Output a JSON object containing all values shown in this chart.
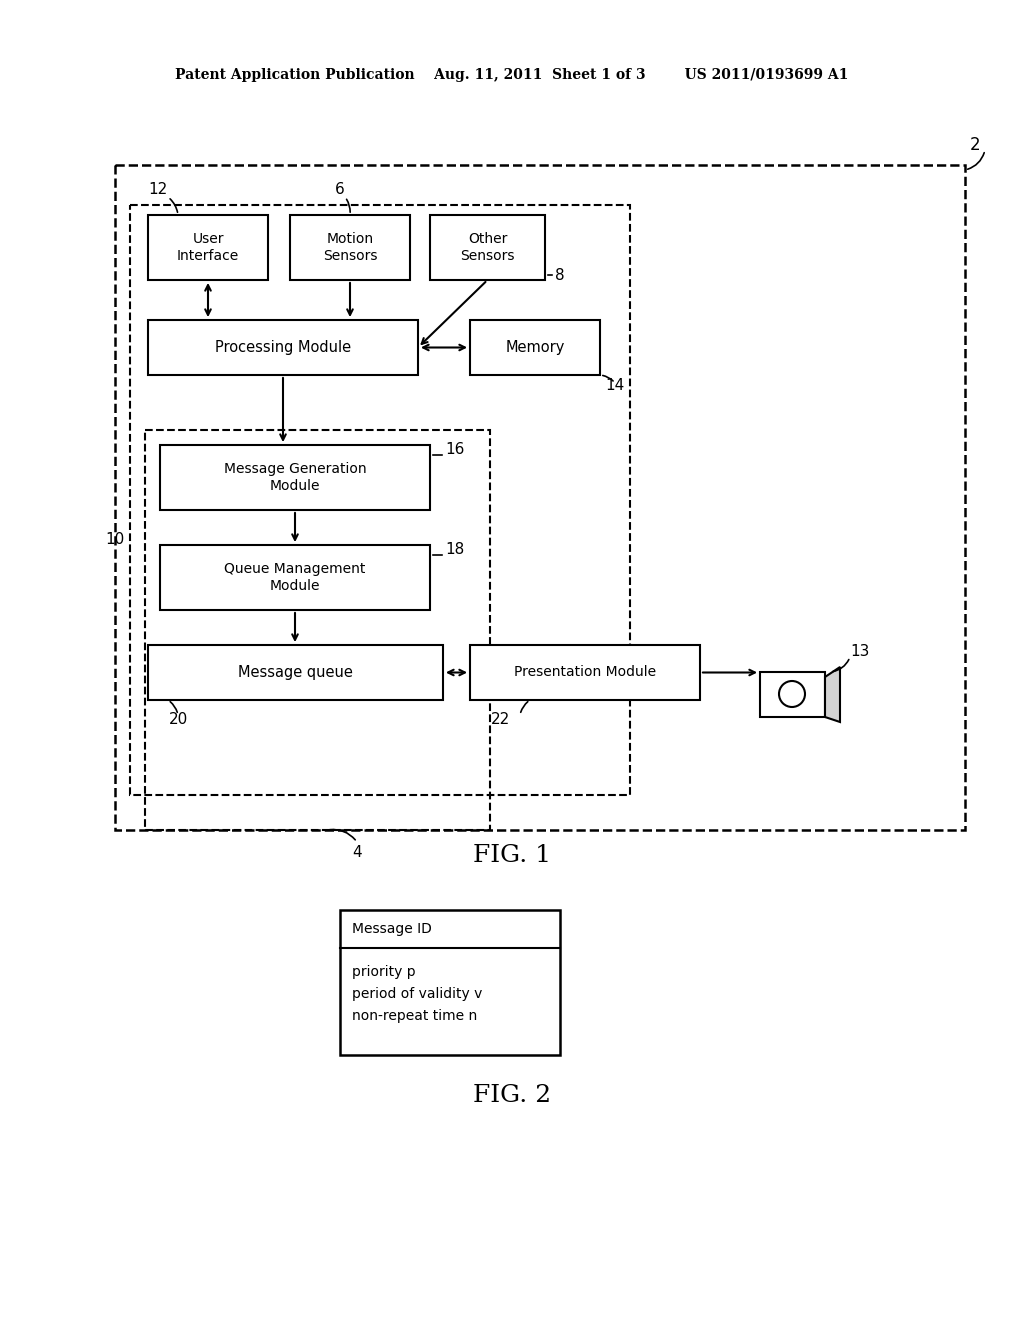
{
  "bg_color": "#ffffff",
  "header_text": "Patent Application Publication    Aug. 11, 2011  Sheet 1 of 3        US 2011/0193699 A1",
  "fig1_label": "FIG. 1",
  "fig2_label": "FIG. 2",
  "label_2": "2",
  "label_4": "4",
  "label_6": "6",
  "label_8": "8",
  "label_10": "10",
  "label_12": "12",
  "label_13": "13",
  "label_14": "14",
  "label_16": "16",
  "label_18": "18",
  "label_20": "20",
  "label_22": "22",
  "box_user_interface": "User\nInterface",
  "box_motion_sensors": "Motion\nSensors",
  "box_other_sensors": "Other\nSensors",
  "box_processing_module": "Processing Module",
  "box_memory": "Memory",
  "box_msg_gen": "Message Generation\nModule",
  "box_queue_mgmt": "Queue Management\nModule",
  "box_msg_queue": "Message queue",
  "box_presentation": "Presentation Module",
  "fig2_msg_id": "Message ID",
  "fig2_line1": "priority p",
  "fig2_line2": "period of validity v",
  "fig2_line3": "non-repeat time n"
}
